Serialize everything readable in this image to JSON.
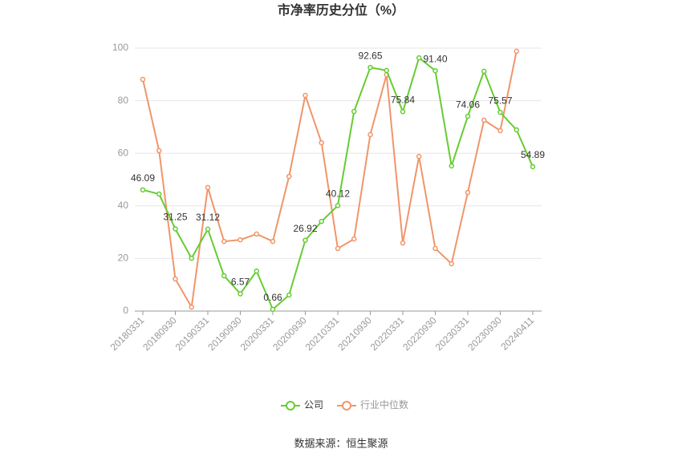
{
  "chart_data": {
    "type": "line",
    "title": "市净率历史分位（%）",
    "source": "数据来源：恒生聚源",
    "categories": [
      "20180331",
      null,
      "20180930",
      null,
      "20190331",
      null,
      "20190930",
      null,
      "20200331",
      null,
      "20200930",
      null,
      "20210331",
      null,
      "20210930",
      null,
      "20220331",
      null,
      "20220930",
      null,
      "20230331",
      null,
      "20230930",
      null,
      "20240411"
    ],
    "series": [
      {
        "name": "公司",
        "color": "#66cc33",
        "values": [
          46.09,
          44.5,
          31.25,
          20.1,
          31.12,
          13.4,
          6.57,
          15.2,
          0.66,
          6.1,
          26.92,
          34.1,
          40.12,
          75.9,
          92.65,
          91.5,
          75.84,
          96.3,
          91.4,
          55.2,
          74.06,
          91.2,
          75.57,
          68.9,
          54.89
        ],
        "value_labels": [
          "46.09",
          null,
          "31.25",
          null,
          "31.12",
          null,
          "6.57",
          null,
          "0.66",
          null,
          "26.92",
          null,
          "40.12",
          null,
          "92.65",
          null,
          "75.84",
          null,
          "91.40",
          null,
          "74.06",
          null,
          "75.57",
          null,
          "54.89"
        ]
      },
      {
        "name": "行业中位数",
        "color": "#f0956a",
        "values": [
          88.1,
          61.0,
          12.2,
          1.5,
          47.0,
          26.5,
          27.1,
          29.3,
          26.5,
          51.2,
          82.0,
          64.0,
          23.8,
          27.4,
          67.1,
          89.9,
          25.9,
          58.8,
          23.8,
          18.0,
          45.1,
          72.6,
          68.6,
          98.8,
          null
        ]
      }
    ],
    "ylim": [
      0,
      100
    ],
    "yticks": [
      0,
      20,
      40,
      60,
      80,
      100
    ],
    "grid": true
  }
}
